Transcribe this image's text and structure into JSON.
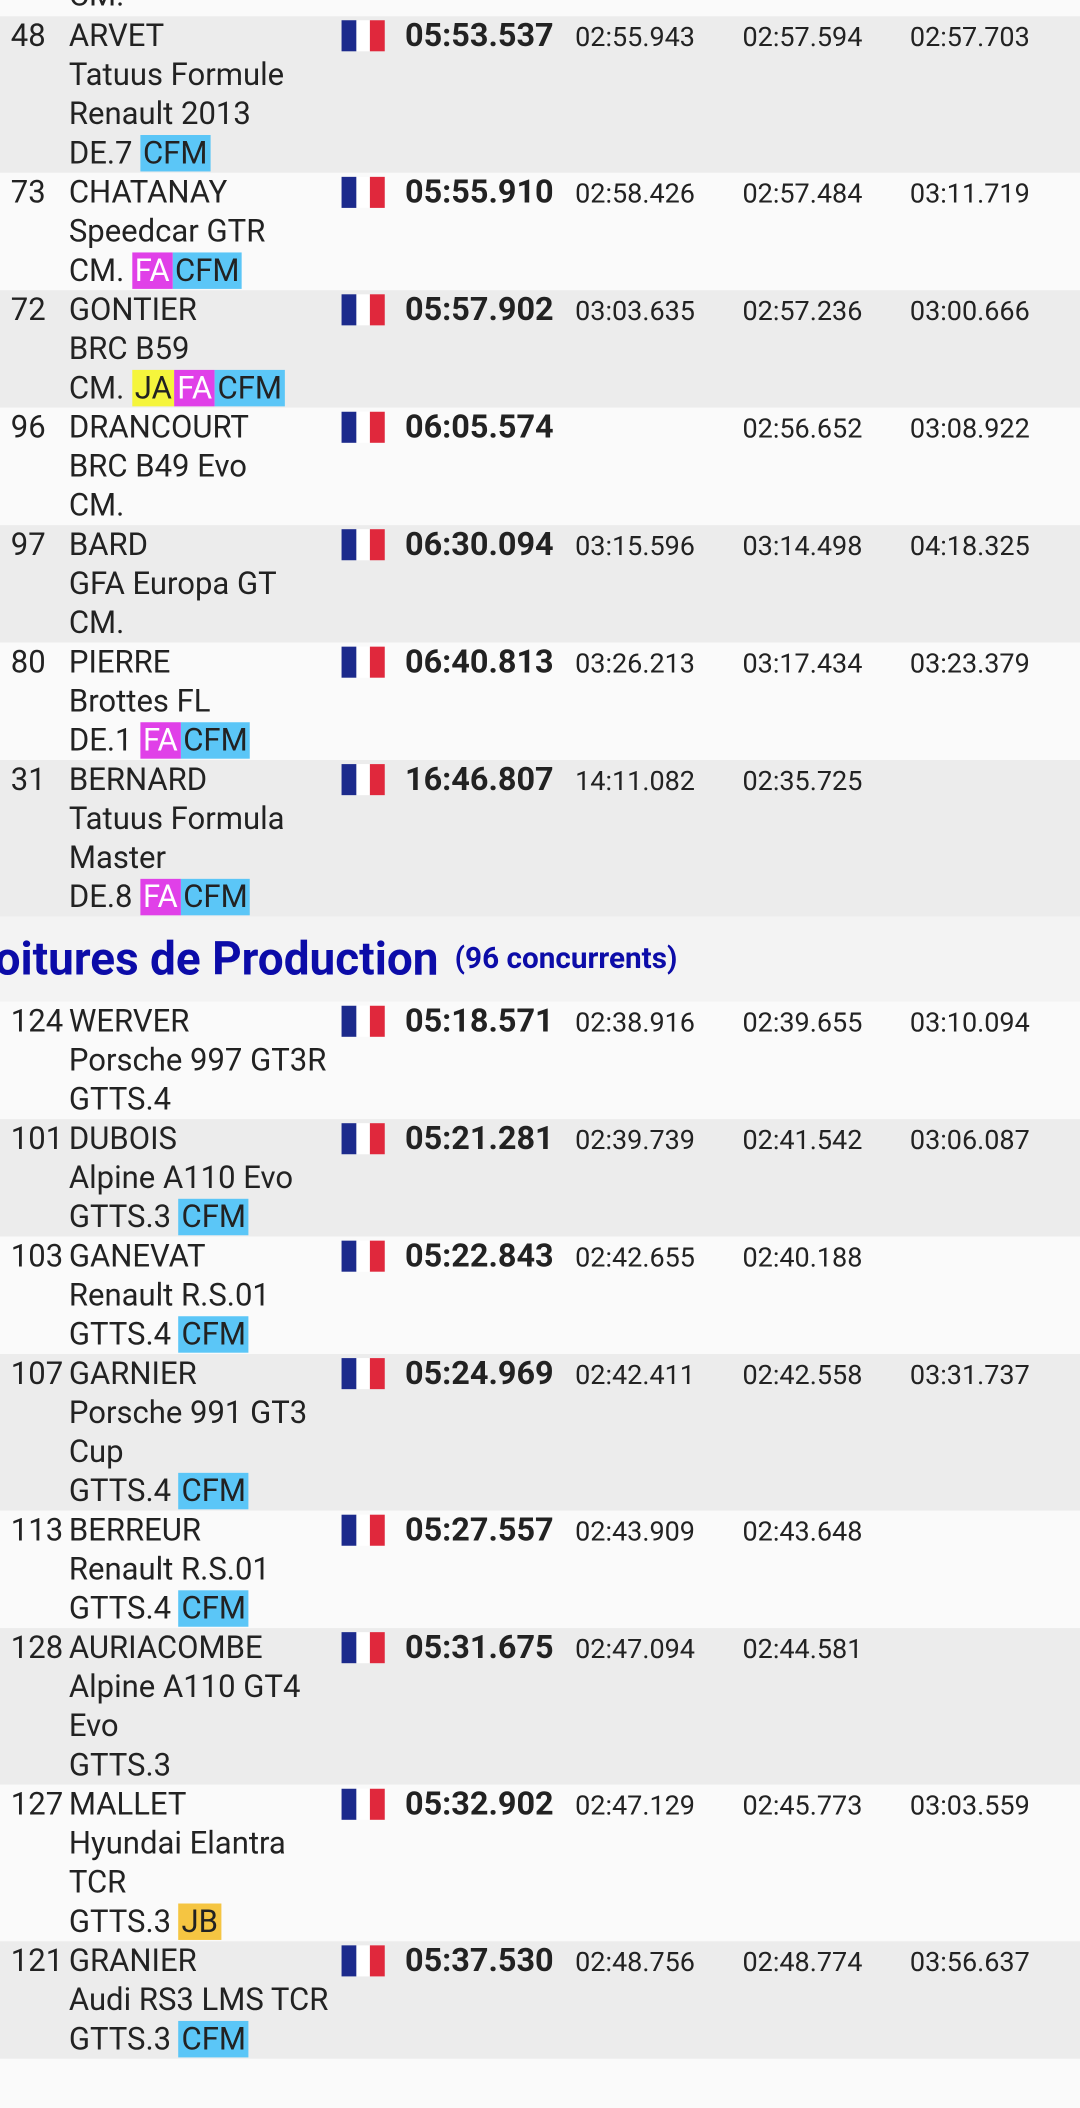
{
  "top_fragment": "CM.",
  "groups": [
    {
      "rows": [
        {
          "pos": "48",
          "name": "ARVET",
          "car": "Tatuus Formule Renault 2013",
          "class": "DE.7",
          "badges": [
            {
              "text": "CFM",
              "color": "#5bc6f7"
            }
          ],
          "total": "05:53.537",
          "laps": [
            "02:55.943",
            "02:57.594",
            "02:57.703"
          ]
        },
        {
          "pos": "73",
          "name": "CHATANAY",
          "car": "Speedcar GTR",
          "class": "CM.",
          "badges": [
            {
              "text": "FA",
              "color": "#e040e8",
              "text_color": "#ffffff"
            },
            {
              "text": "CFM",
              "color": "#5bc6f7"
            }
          ],
          "total": "05:55.910",
          "laps": [
            "02:58.426",
            "02:57.484",
            "03:11.719"
          ]
        },
        {
          "pos": "72",
          "name": "GONTIER",
          "car": "BRC B59",
          "class": "CM.",
          "badges": [
            {
              "text": "JA",
              "color": "#f5f53c"
            },
            {
              "text": "FA",
              "color": "#e040e8",
              "text_color": "#ffffff"
            },
            {
              "text": "CFM",
              "color": "#5bc6f7"
            }
          ],
          "total": "05:57.902",
          "laps": [
            "03:03.635",
            "02:57.236",
            "03:00.666"
          ]
        },
        {
          "pos": "96",
          "name": "DRANCOURT",
          "car": "BRC B49 Evo",
          "class": "CM.",
          "badges": [],
          "total": "06:05.574",
          "laps": [
            null,
            "02:56.652",
            "03:08.922"
          ]
        },
        {
          "pos": "97",
          "name": "BARD",
          "car": "GFA Europa GT",
          "class": "CM.",
          "badges": [],
          "total": "06:30.094",
          "laps": [
            "03:15.596",
            "03:14.498",
            "04:18.325"
          ]
        },
        {
          "pos": "80",
          "name": "PIERRE",
          "car": "Brottes FL",
          "class": "DE.1",
          "badges": [
            {
              "text": "FA",
              "color": "#e040e8",
              "text_color": "#ffffff"
            },
            {
              "text": "CFM",
              "color": "#5bc6f7"
            }
          ],
          "total": "06:40.813",
          "laps": [
            "03:26.213",
            "03:17.434",
            "03:23.379"
          ]
        },
        {
          "pos": "31",
          "name": "BERNARD",
          "car": "Tatuus Formula Master",
          "class": "DE.8",
          "badges": [
            {
              "text": "FA",
              "color": "#e040e8",
              "text_color": "#ffffff"
            },
            {
              "text": "CFM",
              "color": "#5bc6f7"
            }
          ],
          "total": "16:46.807",
          "laps": [
            "14:11.082",
            "02:35.725",
            null
          ]
        }
      ]
    },
    {
      "title": "oitures de Production",
      "count": "(96 concurrents)",
      "rows": [
        {
          "pos": "124",
          "name": "WERVER",
          "car": "Porsche 997 GT3R",
          "class": "GTTS.4",
          "badges": [],
          "total": "05:18.571",
          "laps": [
            "02:38.916",
            "02:39.655",
            "03:10.094"
          ]
        },
        {
          "pos": "101",
          "name": "DUBOIS",
          "car": "Alpine A110 Evo",
          "class": "GTTS.3",
          "badges": [
            {
              "text": "CFM",
              "color": "#5bc6f7"
            }
          ],
          "total": "05:21.281",
          "laps": [
            "02:39.739",
            "02:41.542",
            "03:06.087"
          ]
        },
        {
          "pos": "103",
          "name": "GANEVAT",
          "car": "Renault R.S.01",
          "class": "GTTS.4",
          "badges": [
            {
              "text": "CFM",
              "color": "#5bc6f7"
            }
          ],
          "total": "05:22.843",
          "laps": [
            "02:42.655",
            "02:40.188",
            null
          ]
        },
        {
          "pos": "107",
          "name": "GARNIER",
          "car": "Porsche 991 GT3 Cup",
          "class": "GTTS.4",
          "badges": [
            {
              "text": "CFM",
              "color": "#5bc6f7"
            }
          ],
          "total": "05:24.969",
          "laps": [
            "02:42.411",
            "02:42.558",
            "03:31.737"
          ]
        },
        {
          "pos": "113",
          "name": "BERREUR",
          "car": "Renault R.S.01",
          "class": "GTTS.4",
          "badges": [
            {
              "text": "CFM",
              "color": "#5bc6f7"
            }
          ],
          "total": "05:27.557",
          "laps": [
            "02:43.909",
            "02:43.648",
            null
          ]
        },
        {
          "pos": "128",
          "name": "AURIACOMBE",
          "car": "Alpine A110 GT4 Evo",
          "class": "GTTS.3",
          "badges": [],
          "total": "05:31.675",
          "laps": [
            "02:47.094",
            "02:44.581",
            null
          ]
        },
        {
          "pos": "127",
          "name": "MALLET",
          "car": "Hyundai Elantra TCR",
          "class": "GTTS.3",
          "badges": [
            {
              "text": "JB",
              "color": "#f5c542"
            }
          ],
          "total": "05:32.902",
          "laps": [
            "02:47.129",
            "02:45.773",
            "03:03.559"
          ]
        },
        {
          "pos": "121",
          "name": "GRANIER",
          "car": "Audi RS3 LMS TCR",
          "class": "GTTS.3",
          "badges": [
            {
              "text": "CFM",
              "color": "#5bc6f7"
            }
          ],
          "total": "05:37.530",
          "laps": [
            "02:48.756",
            "02:48.774",
            "03:56.637"
          ]
        }
      ]
    }
  ]
}
